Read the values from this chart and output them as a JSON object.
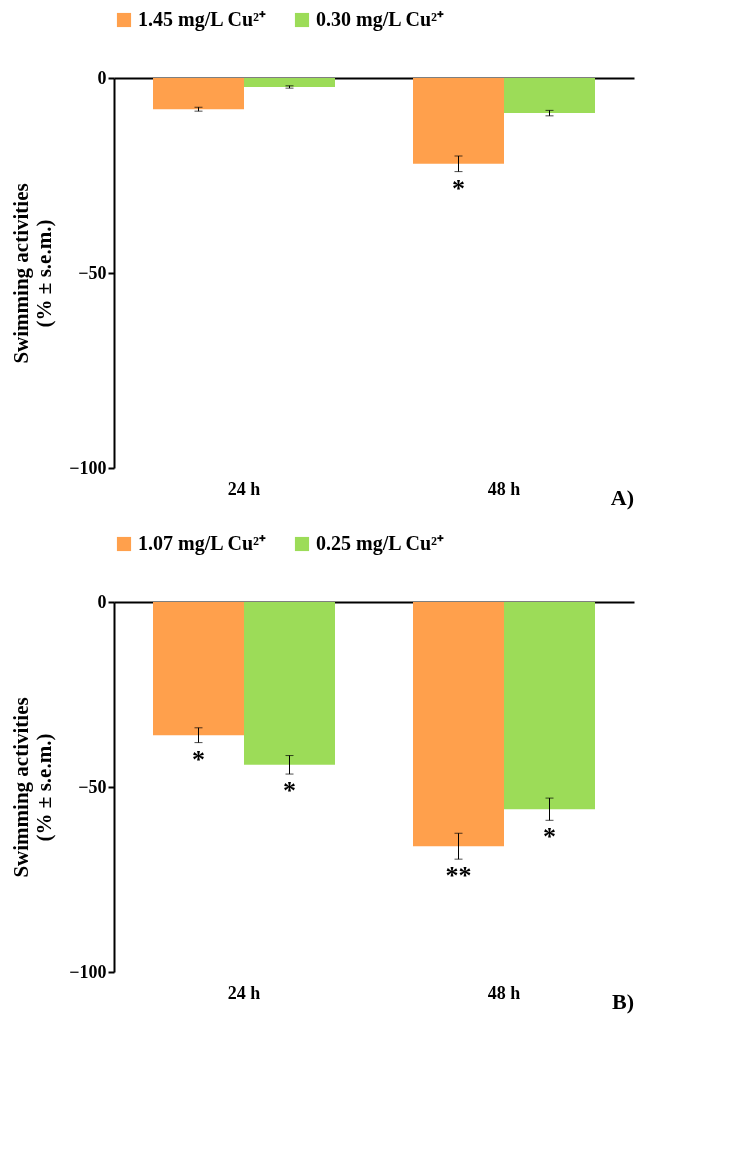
{
  "chart_data": [
    {
      "type": "bar",
      "categories": [
        "24 h",
        "48 h"
      ],
      "ylabel": "Swimming activities\n(% ± s.e.m.)",
      "ylim": [
        -100,
        0
      ],
      "yticks": [
        -100,
        -50,
        0
      ],
      "legend": "top",
      "series": [
        {
          "name": "1.45 mg/L Cu²⁺",
          "color": "#ffa04c",
          "values": [
            -8,
            -22
          ],
          "errors": [
            0.5,
            2
          ]
        },
        {
          "name": "0.30 mg/L Cu²⁺",
          "color": "#9cdc58",
          "values": [
            -2.3,
            -9
          ],
          "errors": [
            0.3,
            0.7
          ]
        }
      ],
      "annotations": [
        {
          "text": "*",
          "x": "48 h",
          "y": -22
        },
        "A)"
      ]
    },
    {
      "type": "bar",
      "categories": [
        "24 h",
        "48 h"
      ],
      "ylabel": "Swimming activities\n(% ± s.e.m.)",
      "ylim": [
        -100,
        0
      ],
      "yticks": [
        -100,
        -50,
        0
      ],
      "legend": "top",
      "series": [
        {
          "name": "1.07 mg/L Cu²⁺",
          "color": "#ffa04c",
          "values": [
            -36,
            -66
          ],
          "errors": [
            2,
            3.5
          ]
        },
        {
          "name": "0.25 mg/L Cu²⁺",
          "color": "#9cdc58",
          "values": [
            -44,
            -56
          ],
          "errors": [
            2.5,
            3
          ]
        }
      ],
      "annotations": [
        {
          "text": "*",
          "x": "24 h",
          "y": -36
        },
        {
          "text": "*",
          "x": "24 h",
          "y": -44
        },
        {
          "text": "**",
          "x": "48 h",
          "y": -66
        },
        {
          "text": "*",
          "x": "48 h",
          "y": -56
        },
        "B)"
      ]
    }
  ]
}
